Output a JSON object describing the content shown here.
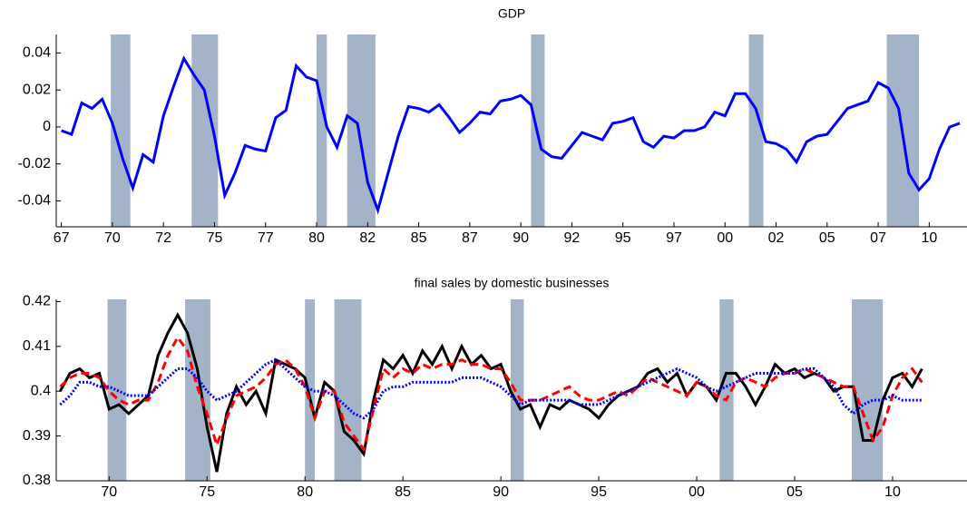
{
  "chart_data": [
    {
      "type": "line",
      "title": "GDP",
      "x": [
        1967.5,
        1968,
        1968.5,
        1969,
        1969.5,
        1970,
        1970.5,
        1971,
        1971.5,
        1972,
        1972.5,
        1973,
        1973.5,
        1974,
        1974.5,
        1975,
        1975.5,
        1976,
        1976.5,
        1977,
        1977.5,
        1978,
        1978.5,
        1979,
        1979.5,
        1980,
        1980.5,
        1981,
        1981.5,
        1982,
        1982.5,
        1983,
        1983.5,
        1984,
        1984.5,
        1985,
        1985.5,
        1986,
        1986.5,
        1987,
        1987.5,
        1988,
        1988.5,
        1989,
        1989.5,
        1990,
        1990.5,
        1991,
        1991.5,
        1992,
        1992.5,
        1993,
        1993.5,
        1994,
        1994.5,
        1995,
        1995.5,
        1996,
        1996.5,
        1997,
        1997.5,
        1998,
        1998.5,
        1999,
        1999.5,
        2000,
        2000.5,
        2001,
        2001.5,
        2002,
        2002.5,
        2003,
        2003.5,
        2004,
        2004.5,
        2005,
        2005.5,
        2006,
        2006.5,
        2007,
        2007.5,
        2008,
        2008.5,
        2009,
        2009.5,
        2010,
        2010.5,
        2011,
        2011.5
      ],
      "series": [
        {
          "color": "#0000ff",
          "style": "solid",
          "values": [
            -0.002,
            -0.004,
            0.013,
            0.01,
            0.015,
            0.002,
            -0.017,
            -0.033,
            -0.015,
            -0.019,
            0.006,
            0.022,
            0.037,
            0.028,
            0.02,
            -0.005,
            -0.037,
            -0.025,
            -0.01,
            -0.012,
            -0.013,
            0.005,
            0.009,
            0.033,
            0.027,
            0.025,
            0.0,
            -0.011,
            0.006,
            0.002,
            -0.03,
            -0.045,
            -0.025,
            -0.005,
            0.011,
            0.01,
            0.008,
            0.012,
            0.005,
            -0.003,
            0.002,
            0.008,
            0.007,
            0.014,
            0.015,
            0.017,
            0.012,
            -0.012,
            -0.016,
            -0.017,
            -0.01,
            -0.003,
            -0.005,
            -0.007,
            0.002,
            0.003,
            0.005,
            -0.008,
            -0.011,
            -0.005,
            -0.006,
            -0.002,
            -0.002,
            0.0,
            0.008,
            0.006,
            0.018,
            0.018,
            0.01,
            -0.008,
            -0.009,
            -0.012,
            -0.019,
            -0.008,
            -0.005,
            -0.004,
            0.003,
            0.01,
            0.012,
            0.014,
            0.024,
            0.021,
            0.01,
            -0.025,
            -0.034,
            -0.028,
            -0.012,
            0.0,
            0.002
          ]
        }
      ],
      "recessions": [
        [
          1969.92,
          1970.88
        ],
        [
          1973.88,
          1975.17
        ],
        [
          1980.0,
          1980.5
        ],
        [
          1981.5,
          1982.88
        ],
        [
          1990.5,
          1991.17
        ],
        [
          2001.17,
          2001.88
        ],
        [
          2007.92,
          2009.5
        ]
      ],
      "recession_color": "#a3b4c8",
      "xlim": [
        1967.25,
        2011.85
      ],
      "ylim": [
        -0.054,
        0.05
      ],
      "xticks": [
        {
          "value": 1967.5,
          "label": "67"
        },
        {
          "value": 1970,
          "label": "70"
        },
        {
          "value": 1972.5,
          "label": "72"
        },
        {
          "value": 1975,
          "label": "75"
        },
        {
          "value": 1977.5,
          "label": "77"
        },
        {
          "value": 1980,
          "label": "80"
        },
        {
          "value": 1982.5,
          "label": "82"
        },
        {
          "value": 1985,
          "label": "85"
        },
        {
          "value": 1987.5,
          "label": "87"
        },
        {
          "value": 1990,
          "label": "90"
        },
        {
          "value": 1992.5,
          "label": "92"
        },
        {
          "value": 1995,
          "label": "95"
        },
        {
          "value": 1997.5,
          "label": "97"
        },
        {
          "value": 2000,
          "label": "00"
        },
        {
          "value": 2002.5,
          "label": "02"
        },
        {
          "value": 2005,
          "label": "05"
        },
        {
          "value": 2007.5,
          "label": "07"
        },
        {
          "value": 2010,
          "label": "10"
        }
      ],
      "yticks": [
        -0.04,
        -0.02,
        0,
        0.02,
        0.04
      ]
    },
    {
      "type": "line",
      "title": "final sales by domestic businesses",
      "x": [
        1967.5,
        1968,
        1968.5,
        1969,
        1969.5,
        1970,
        1970.5,
        1971,
        1971.5,
        1972,
        1972.5,
        1973,
        1973.5,
        1974,
        1974.5,
        1975,
        1975.5,
        1976,
        1976.5,
        1977,
        1977.5,
        1978,
        1978.5,
        1979,
        1979.5,
        1980,
        1980.5,
        1981,
        1981.5,
        1982,
        1982.5,
        1983,
        1983.5,
        1984,
        1984.5,
        1985,
        1985.5,
        1986,
        1986.5,
        1987,
        1987.5,
        1988,
        1988.5,
        1989,
        1989.5,
        1990,
        1990.5,
        1991,
        1991.5,
        1992,
        1992.5,
        1993,
        1993.5,
        1994,
        1994.5,
        1995,
        1995.5,
        1996,
        1996.5,
        1997,
        1997.5,
        1998,
        1998.5,
        1999,
        1999.5,
        2000,
        2000.5,
        2001,
        2001.5,
        2002,
        2002.5,
        2003,
        2003.5,
        2004,
        2004.5,
        2005,
        2005.5,
        2006,
        2006.5,
        2007,
        2007.5,
        2008,
        2008.5,
        2009,
        2009.5,
        2010,
        2010.5,
        2011,
        2011.5
      ],
      "series": [
        {
          "color": "#000000",
          "style": "solid",
          "values": [
            0.4,
            0.404,
            0.405,
            0.403,
            0.404,
            0.396,
            0.397,
            0.395,
            0.397,
            0.399,
            0.408,
            0.413,
            0.417,
            0.413,
            0.405,
            0.392,
            0.382,
            0.395,
            0.401,
            0.397,
            0.4,
            0.395,
            0.407,
            0.406,
            0.405,
            0.403,
            0.394,
            0.402,
            0.4,
            0.391,
            0.389,
            0.386,
            0.398,
            0.407,
            0.405,
            0.408,
            0.404,
            0.409,
            0.406,
            0.41,
            0.405,
            0.41,
            0.406,
            0.408,
            0.405,
            0.406,
            0.4,
            0.396,
            0.397,
            0.392,
            0.397,
            0.396,
            0.398,
            0.397,
            0.396,
            0.394,
            0.397,
            0.399,
            0.4,
            0.401,
            0.404,
            0.405,
            0.402,
            0.404,
            0.399,
            0.402,
            0.401,
            0.398,
            0.404,
            0.404,
            0.401,
            0.397,
            0.401,
            0.406,
            0.404,
            0.405,
            0.403,
            0.404,
            0.403,
            0.4,
            0.401,
            0.401,
            0.389,
            0.389,
            0.398,
            0.403,
            0.404,
            0.401,
            0.405
          ]
        },
        {
          "color": "#ff0000",
          "style": "dashed",
          "values": [
            0.401,
            0.403,
            0.404,
            0.404,
            0.403,
            0.4,
            0.398,
            0.397,
            0.398,
            0.398,
            0.402,
            0.408,
            0.412,
            0.409,
            0.401,
            0.395,
            0.388,
            0.394,
            0.399,
            0.4,
            0.401,
            0.403,
            0.406,
            0.407,
            0.405,
            0.401,
            0.394,
            0.4,
            0.4,
            0.393,
            0.39,
            0.387,
            0.396,
            0.405,
            0.403,
            0.405,
            0.404,
            0.406,
            0.405,
            0.406,
            0.406,
            0.407,
            0.406,
            0.406,
            0.405,
            0.405,
            0.402,
            0.398,
            0.398,
            0.398,
            0.399,
            0.4,
            0.401,
            0.399,
            0.398,
            0.398,
            0.399,
            0.4,
            0.399,
            0.401,
            0.403,
            0.402,
            0.401,
            0.4,
            0.399,
            0.402,
            0.401,
            0.399,
            0.398,
            0.402,
            0.403,
            0.402,
            0.401,
            0.403,
            0.404,
            0.404,
            0.405,
            0.404,
            0.403,
            0.402,
            0.401,
            0.401,
            0.395,
            0.389,
            0.392,
            0.399,
            0.403,
            0.405,
            0.402
          ]
        },
        {
          "color": "#0000ff",
          "style": "dotted",
          "values": [
            0.397,
            0.399,
            0.402,
            0.402,
            0.401,
            0.401,
            0.4,
            0.399,
            0.399,
            0.399,
            0.401,
            0.403,
            0.405,
            0.405,
            0.403,
            0.4,
            0.398,
            0.399,
            0.4,
            0.402,
            0.404,
            0.406,
            0.407,
            0.405,
            0.403,
            0.401,
            0.4,
            0.4,
            0.399,
            0.397,
            0.395,
            0.394,
            0.396,
            0.4,
            0.401,
            0.401,
            0.402,
            0.402,
            0.402,
            0.402,
            0.402,
            0.403,
            0.403,
            0.403,
            0.402,
            0.401,
            0.399,
            0.397,
            0.398,
            0.398,
            0.398,
            0.398,
            0.398,
            0.397,
            0.397,
            0.397,
            0.398,
            0.399,
            0.4,
            0.401,
            0.402,
            0.403,
            0.404,
            0.405,
            0.404,
            0.403,
            0.401,
            0.4,
            0.401,
            0.402,
            0.403,
            0.404,
            0.404,
            0.404,
            0.404,
            0.404,
            0.405,
            0.405,
            0.403,
            0.401,
            0.397,
            0.395,
            0.397,
            0.398,
            0.398,
            0.399,
            0.398,
            0.398,
            0.398
          ]
        }
      ],
      "recessions": [
        [
          1969.92,
          1970.88
        ],
        [
          1973.88,
          1975.17
        ],
        [
          1980.0,
          1980.5
        ],
        [
          1981.5,
          1982.88
        ],
        [
          1990.5,
          1991.17
        ],
        [
          2001.17,
          2001.88
        ],
        [
          2007.92,
          2009.5
        ]
      ],
      "recession_color": "#a3b4c8",
      "xlim": [
        1967.3,
        2013.8
      ],
      "ylim": [
        0.38,
        0.4205
      ],
      "xticks": [
        {
          "value": 1970,
          "label": "70"
        },
        {
          "value": 1975,
          "label": "75"
        },
        {
          "value": 1980,
          "label": "80"
        },
        {
          "value": 1985,
          "label": "85"
        },
        {
          "value": 1990,
          "label": "90"
        },
        {
          "value": 1995,
          "label": "95"
        },
        {
          "value": 2000,
          "label": "00"
        },
        {
          "value": 2005,
          "label": "05"
        },
        {
          "value": 2010,
          "label": "10"
        }
      ],
      "yticks": [
        0.38,
        0.39,
        0.4,
        0.41,
        0.42
      ]
    }
  ]
}
